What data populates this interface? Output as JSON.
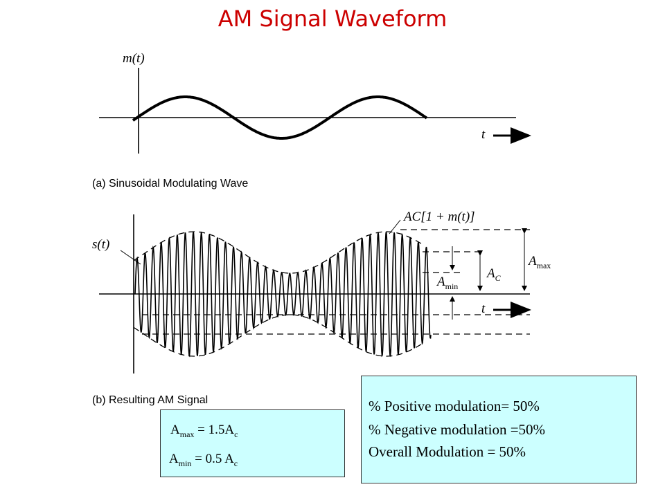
{
  "title": "AM Signal Waveform",
  "colors": {
    "title": "#cc0000",
    "box_fill": "#ccffff",
    "ink": "#000000"
  },
  "diagram_a": {
    "signal_label": "m(t)",
    "time_label": "t",
    "caption": "(a) Sinusoidal Modulating Wave"
  },
  "diagram_b": {
    "signal_label": "s(t)",
    "time_label": "t",
    "envelope_label": "AC[1 + m(t)]",
    "a_max": {
      "base": "A",
      "sub": "max"
    },
    "a_c": {
      "base": "A",
      "sub": "C"
    },
    "a_min": {
      "base": "A",
      "sub": "min"
    },
    "caption": "(b) Resulting AM Signal"
  },
  "box_right": {
    "lines": [
      "%  Positive modulation= 50%",
      "%  Negative modulation =50%",
      "Overall Modulation = 50%"
    ]
  },
  "box_left": {
    "line1": {
      "a": "A",
      "sub1": "max",
      "mid": " = 1.5A",
      "sub2": "c"
    },
    "line2": {
      "a": "A",
      "sub1": "min",
      "mid": " =  0.5 A",
      "sub2": "c"
    }
  }
}
